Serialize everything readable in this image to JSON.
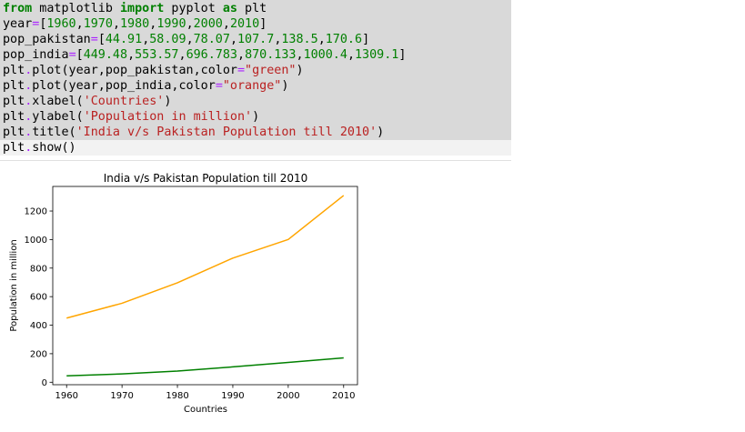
{
  "code": {
    "lines": [
      [
        {
          "t": "from",
          "k": "kw"
        },
        {
          "t": " matplotlib ",
          "k": "name"
        },
        {
          "t": "import",
          "k": "kw"
        },
        {
          "t": " pyplot ",
          "k": "name"
        },
        {
          "t": "as",
          "k": "kw"
        },
        {
          "t": " plt",
          "k": "name"
        }
      ],
      [
        {
          "t": "year",
          "k": "name"
        },
        {
          "t": "=",
          "k": "op"
        },
        {
          "t": "[",
          "k": "punc"
        },
        {
          "t": "1960",
          "k": "num"
        },
        {
          "t": ",",
          "k": "punc"
        },
        {
          "t": "1970",
          "k": "num"
        },
        {
          "t": ",",
          "k": "punc"
        },
        {
          "t": "1980",
          "k": "num"
        },
        {
          "t": ",",
          "k": "punc"
        },
        {
          "t": "1990",
          "k": "num"
        },
        {
          "t": ",",
          "k": "punc"
        },
        {
          "t": "2000",
          "k": "num"
        },
        {
          "t": ",",
          "k": "punc"
        },
        {
          "t": "2010",
          "k": "num"
        },
        {
          "t": "]",
          "k": "punc"
        }
      ],
      [
        {
          "t": "pop_pakistan",
          "k": "name"
        },
        {
          "t": "=",
          "k": "op"
        },
        {
          "t": "[",
          "k": "punc"
        },
        {
          "t": "44.91",
          "k": "num"
        },
        {
          "t": ",",
          "k": "punc"
        },
        {
          "t": "58.09",
          "k": "num"
        },
        {
          "t": ",",
          "k": "punc"
        },
        {
          "t": "78.07",
          "k": "num"
        },
        {
          "t": ",",
          "k": "punc"
        },
        {
          "t": "107.7",
          "k": "num"
        },
        {
          "t": ",",
          "k": "punc"
        },
        {
          "t": "138.5",
          "k": "num"
        },
        {
          "t": ",",
          "k": "punc"
        },
        {
          "t": "170.6",
          "k": "num"
        },
        {
          "t": "]",
          "k": "punc"
        }
      ],
      [
        {
          "t": "pop_india",
          "k": "name"
        },
        {
          "t": "=",
          "k": "op"
        },
        {
          "t": "[",
          "k": "punc"
        },
        {
          "t": "449.48",
          "k": "num"
        },
        {
          "t": ",",
          "k": "punc"
        },
        {
          "t": "553.57",
          "k": "num"
        },
        {
          "t": ",",
          "k": "punc"
        },
        {
          "t": "696.783",
          "k": "num"
        },
        {
          "t": ",",
          "k": "punc"
        },
        {
          "t": "870.133",
          "k": "num"
        },
        {
          "t": ",",
          "k": "punc"
        },
        {
          "t": "1000.4",
          "k": "num"
        },
        {
          "t": ",",
          "k": "punc"
        },
        {
          "t": "1309.1",
          "k": "num"
        },
        {
          "t": "]",
          "k": "punc"
        }
      ],
      [
        {
          "t": "plt",
          "k": "name"
        },
        {
          "t": ".",
          "k": "op"
        },
        {
          "t": "plot",
          "k": "name"
        },
        {
          "t": "(year,pop_pakistan,color",
          "k": "punc"
        },
        {
          "t": "=",
          "k": "op"
        },
        {
          "t": "\"green\"",
          "k": "str"
        },
        {
          "t": ")",
          "k": "punc"
        }
      ],
      [
        {
          "t": "plt",
          "k": "name"
        },
        {
          "t": ".",
          "k": "op"
        },
        {
          "t": "plot",
          "k": "name"
        },
        {
          "t": "(year,pop_india,color",
          "k": "punc"
        },
        {
          "t": "=",
          "k": "op"
        },
        {
          "t": "\"orange\"",
          "k": "str"
        },
        {
          "t": ")",
          "k": "punc"
        }
      ],
      [
        {
          "t": "plt",
          "k": "name"
        },
        {
          "t": ".",
          "k": "op"
        },
        {
          "t": "xlabel(",
          "k": "name"
        },
        {
          "t": "'Countries'",
          "k": "str"
        },
        {
          "t": ")",
          "k": "punc"
        }
      ],
      [
        {
          "t": "plt",
          "k": "name"
        },
        {
          "t": ".",
          "k": "op"
        },
        {
          "t": "ylabel(",
          "k": "name"
        },
        {
          "t": "'Population in million'",
          "k": "str"
        },
        {
          "t": ")",
          "k": "punc"
        }
      ],
      [
        {
          "t": "plt",
          "k": "name"
        },
        {
          "t": ".",
          "k": "op"
        },
        {
          "t": "title(",
          "k": "name"
        },
        {
          "t": "'India v/s Pakistan Population till 2010'",
          "k": "str"
        },
        {
          "t": ")",
          "k": "punc"
        }
      ],
      [
        {
          "t": "plt",
          "k": "name"
        },
        {
          "t": ".",
          "k": "op"
        },
        {
          "t": "show()",
          "k": "name"
        }
      ]
    ]
  },
  "chart_data": {
    "type": "line",
    "title": "India v/s Pakistan Population till 2010",
    "xlabel": "Countries",
    "ylabel": "Population in million",
    "x": [
      1960,
      1970,
      1980,
      1990,
      2000,
      2010
    ],
    "series": [
      {
        "values": [
          44.91,
          58.09,
          78.07,
          107.7,
          138.5,
          170.6
        ],
        "color": "#008000"
      },
      {
        "values": [
          449.48,
          553.57,
          696.783,
          870.133,
          1000.4,
          1309.1
        ],
        "color": "#ffa500"
      }
    ],
    "xticks": [
      1960,
      1970,
      1980,
      1990,
      2000,
      2010
    ],
    "yticks": [
      0,
      200,
      400,
      600,
      800,
      1000,
      1200
    ],
    "xlim": [
      1957.5,
      2012.5
    ],
    "ylim": [
      -17.3,
      1372.3
    ],
    "grid": false
  }
}
